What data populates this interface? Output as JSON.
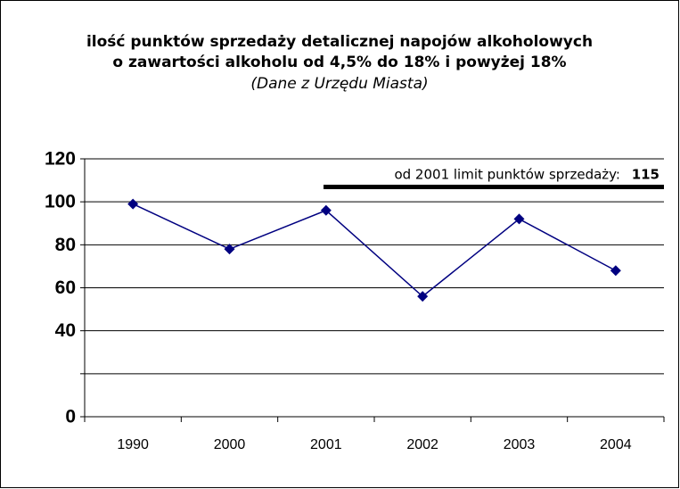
{
  "chart_data": {
    "type": "line",
    "title": [
      "ilość punktów sprzedaży detalicznej napojów alkoholowych",
      "o zawartości alkoholu od 4,5% do 18% i powyżej 18%"
    ],
    "subtitle": "(Dane z Urzędu Miasta)",
    "categories": [
      "1990",
      "2000",
      "2001",
      "2002",
      "2003",
      "2004"
    ],
    "series": [
      {
        "color": "#000080",
        "values": [
          99,
          78,
          96,
          56,
          92,
          68
        ]
      }
    ],
    "ylim": [
      0,
      120
    ],
    "yticks": [
      0,
      {
        "value": 20,
        "label": null
      },
      40,
      60,
      80,
      100,
      120
    ],
    "grid": true,
    "annotation": {
      "text": "od 2001 limit punktów sprzedaży:",
      "value": 115
    }
  }
}
